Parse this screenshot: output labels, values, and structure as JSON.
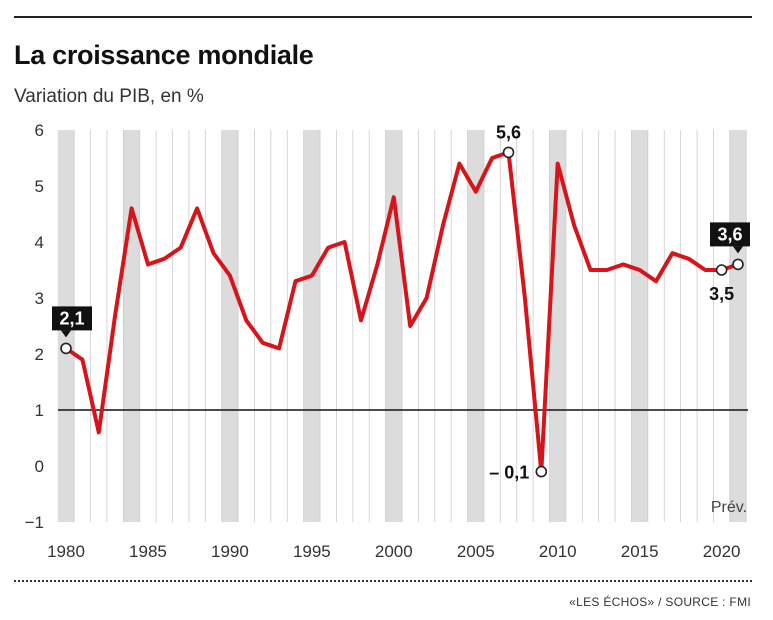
{
  "header": {
    "title": "La croissance mondiale",
    "subtitle": "Variation du PIB, en %"
  },
  "footer": {
    "source": "«LES ÉCHOS» / SOURCE : FMI"
  },
  "colors": {
    "line": "#d8141b",
    "band": "#dcdcdc",
    "grid": "#cccccc",
    "text": "#1a1a1a"
  },
  "chart_data": {
    "type": "line",
    "title": "La croissance mondiale",
    "subtitle": "Variation du PIB, en %",
    "x": [
      1980,
      1981,
      1982,
      1983,
      1984,
      1985,
      1986,
      1987,
      1988,
      1989,
      1990,
      1991,
      1992,
      1993,
      1994,
      1995,
      1996,
      1997,
      1998,
      1999,
      2000,
      2001,
      2002,
      2003,
      2004,
      2005,
      2006,
      2007,
      2008,
      2009,
      2010,
      2011,
      2012,
      2013,
      2014,
      2015,
      2016,
      2017,
      2018,
      2019,
      2020,
      2021
    ],
    "series": [
      {
        "values": [
          2.1,
          1.9,
          0.6,
          2.7,
          4.6,
          3.6,
          3.7,
          3.9,
          4.6,
          3.8,
          3.4,
          2.6,
          2.2,
          2.1,
          3.3,
          3.4,
          3.9,
          4.0,
          2.6,
          3.6,
          4.8,
          2.5,
          3.0,
          4.3,
          5.4,
          4.9,
          5.5,
          5.6,
          3.0,
          -0.1,
          5.4,
          4.3,
          3.5,
          3.5,
          3.6,
          3.5,
          3.3,
          3.8,
          3.7,
          3.5,
          3.5,
          3.6
        ]
      }
    ],
    "xlim": [
      1980,
      2021
    ],
    "ylim": [
      -1,
      6
    ],
    "xticks": [
      1980,
      1985,
      1990,
      1995,
      2000,
      2005,
      2010,
      2015,
      2020
    ],
    "yticks": [
      -1,
      0,
      1,
      2,
      3,
      4,
      5,
      6
    ],
    "ytick_labels": [
      "−1",
      "0",
      "1",
      "2",
      "3",
      "4",
      "5",
      "6"
    ],
    "reference_line": 1,
    "shaded_years": [
      1980,
      1984,
      1990,
      1995,
      2000,
      2005,
      2010,
      2015,
      2021
    ],
    "forecast_label": "Prév.",
    "annotations": [
      {
        "x": 1980,
        "y": 2.1,
        "label": "2,1",
        "style": "box"
      },
      {
        "x": 2007,
        "y": 5.6,
        "label": "5,6",
        "style": "plain"
      },
      {
        "x": 2009,
        "y": -0.1,
        "label": "– 0,1",
        "style": "plain"
      },
      {
        "x": 2020,
        "y": 3.5,
        "label": "3,5",
        "style": "plain"
      },
      {
        "x": 2021,
        "y": 3.6,
        "label": "3,6",
        "style": "box"
      }
    ],
    "grid": true,
    "legend": "none"
  }
}
